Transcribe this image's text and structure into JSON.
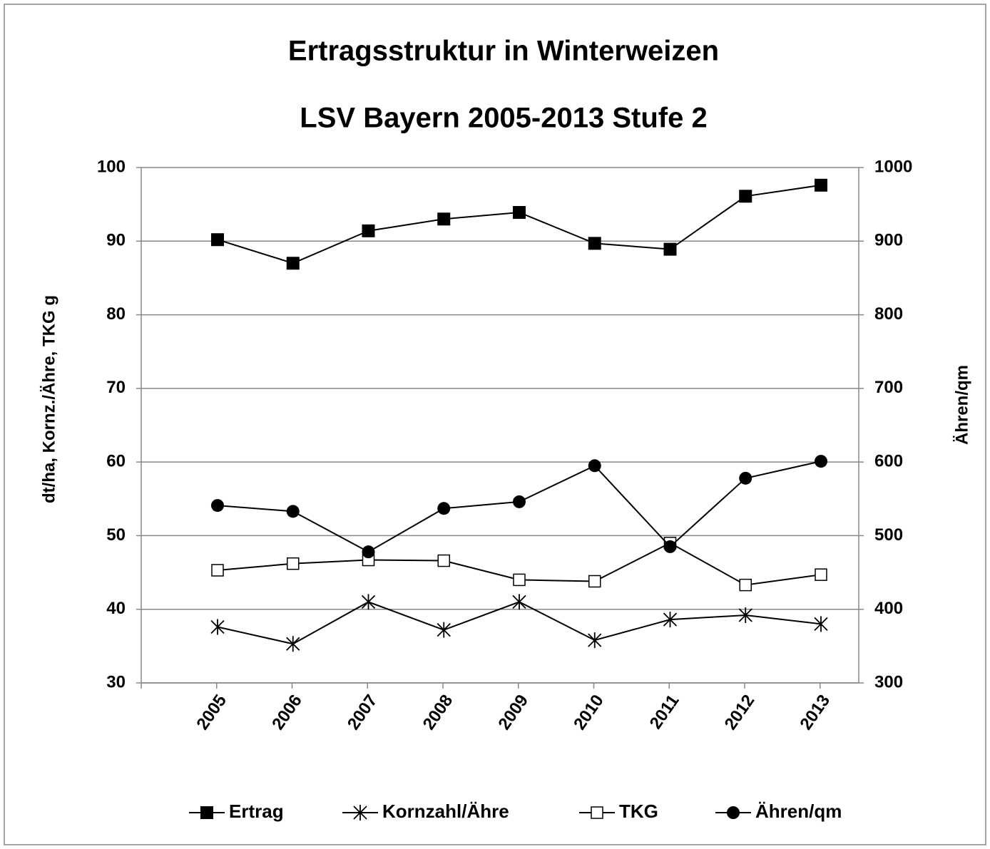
{
  "chart_data": {
    "type": "line",
    "title": "Ertragsstruktur in Winterweizen",
    "subtitle": "LSV Bayern 2005-2013 Stufe 2",
    "y_label": "dt/ha, Kornz./Ähre, TKG g",
    "y2_label": "Ähren/qm",
    "categories": [
      "2005",
      "2006",
      "2007",
      "2008",
      "2009",
      "2010",
      "2011",
      "2012",
      "2013"
    ],
    "series": [
      {
        "name": "Ertrag",
        "color": "#000000",
        "marker": "square",
        "values": [
          90.2,
          87.0,
          91.4,
          93.0,
          93.9,
          89.7,
          88.9,
          96.1,
          97.6
        ]
      },
      {
        "name": "Kornzahl/Ähre",
        "color": "#000000",
        "marker": "asterisk",
        "values": [
          37.6,
          35.3,
          41.0,
          37.2,
          41.0,
          35.8,
          38.6,
          39.2,
          38.0
        ]
      },
      {
        "name": "TKG",
        "color": "#000000",
        "marker": "open-square",
        "values": [
          45.3,
          46.2,
          46.7,
          46.6,
          44.0,
          43.8,
          49.0,
          43.3,
          44.7
        ]
      },
      {
        "name": "Ähren/qm",
        "color": "#000000",
        "marker": "circle",
        "axis": "y2",
        "values": [
          541,
          533,
          478,
          537,
          546,
          595,
          485,
          578,
          601
        ]
      }
    ],
    "ylim": [
      30,
      100
    ],
    "yticks": [
      30,
      40,
      50,
      60,
      70,
      80,
      90,
      100
    ],
    "y2lim": [
      300,
      1000
    ],
    "y2ticks": [
      300,
      400,
      500,
      600,
      700,
      800,
      900,
      1000
    ],
    "grid": true,
    "legend": "bottom"
  }
}
